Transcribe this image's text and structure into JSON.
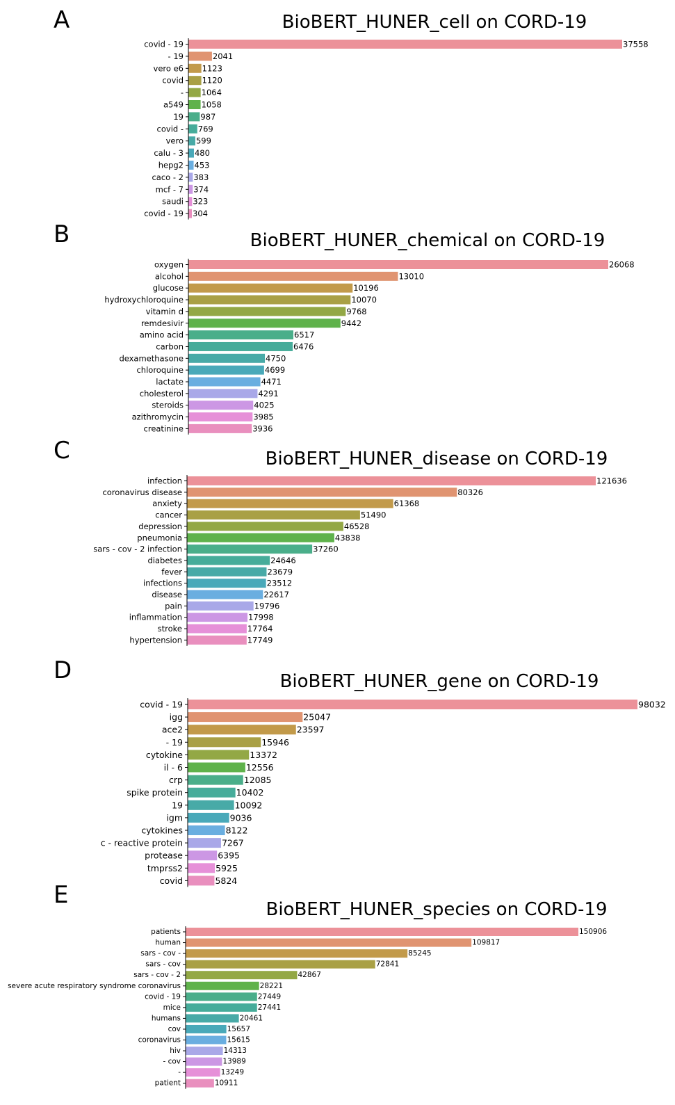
{
  "colors": [
    "#ec9199",
    "#e09471",
    "#c29a4a",
    "#a9a045",
    "#93a845",
    "#5fb24b",
    "#4aae8a",
    "#46ac9a",
    "#48aaa7",
    "#49a9b9",
    "#6aaee0",
    "#a9a8e8",
    "#cc97e4",
    "#e690d8",
    "#e98fbe"
  ],
  "chart_data": [
    {
      "panel_letter": "A",
      "title": "BioBERT_HUNER_cell  on CORD-19",
      "type": "bar",
      "orientation": "horizontal",
      "categories": [
        "covid - 19",
        "- 19",
        "vero e6",
        "covid",
        "-",
        "a549",
        "19",
        "covid -",
        "vero",
        "calu - 3",
        "hepg2",
        "caco - 2",
        "mcf - 7",
        "saudi",
        "covid - 19"
      ],
      "values": [
        37558,
        2041,
        1123,
        1120,
        1064,
        1058,
        987,
        769,
        599,
        480,
        453,
        383,
        374,
        323,
        304
      ],
      "max": 37558
    },
    {
      "panel_letter": "B",
      "title": "BioBERT_HUNER_chemical  on CORD-19",
      "type": "bar",
      "orientation": "horizontal",
      "categories": [
        "oxygen",
        "alcohol",
        "glucose",
        "hydroxychloroquine",
        "vitamin d",
        "remdesivir",
        "amino acid",
        "carbon",
        "dexamethasone",
        "chloroquine",
        "lactate",
        "cholesterol",
        "steroids",
        "azithromycin",
        "creatinine"
      ],
      "values": [
        26068,
        13010,
        10196,
        10070,
        9768,
        9442,
        6517,
        6476,
        4750,
        4699,
        4471,
        4291,
        4025,
        3985,
        3936
      ],
      "max": 26068
    },
    {
      "panel_letter": "C",
      "title": "BioBERT_HUNER_disease  on CORD-19",
      "type": "bar",
      "orientation": "horizontal",
      "categories": [
        "infection",
        "coronavirus disease",
        "anxiety",
        "cancer",
        "depression",
        "pneumonia",
        "sars - cov - 2 infection",
        "diabetes",
        "fever",
        "infections",
        "disease",
        "pain",
        "inflammation",
        "stroke",
        "hypertension"
      ],
      "values": [
        121636,
        80326,
        61368,
        51490,
        46528,
        43838,
        37260,
        24646,
        23679,
        23512,
        22617,
        19796,
        17998,
        17764,
        17749
      ],
      "max": 121636
    },
    {
      "panel_letter": "D",
      "title": "BioBERT_HUNER_gene  on CORD-19",
      "type": "bar",
      "orientation": "horizontal",
      "categories": [
        "covid - 19",
        "igg",
        "ace2",
        "- 19",
        "cytokine",
        "il - 6",
        "crp",
        "spike protein",
        "19",
        "igm",
        "cytokines",
        "c - reactive protein",
        "protease",
        "tmprss2",
        "covid"
      ],
      "values": [
        98032,
        25047,
        23597,
        15946,
        13372,
        12556,
        12085,
        10402,
        10092,
        9036,
        8122,
        7267,
        6395,
        5925,
        5824
      ],
      "max": 98032
    },
    {
      "panel_letter": "E",
      "title": "BioBERT_HUNER_species  on CORD-19",
      "type": "bar",
      "orientation": "horizontal",
      "categories": [
        "patients",
        "human",
        "sars - cov -",
        "sars - cov",
        "sars - cov - 2",
        "severe acute respiratory syndrome coronavirus",
        "covid - 19",
        "mice",
        "humans",
        "cov",
        "coronavirus",
        "hiv",
        "- cov",
        "-",
        "patient"
      ],
      "values": [
        150906,
        109817,
        85245,
        72841,
        42867,
        28221,
        27449,
        27441,
        20461,
        15657,
        15615,
        14313,
        13989,
        13249,
        10911
      ],
      "max": 150906
    }
  ]
}
